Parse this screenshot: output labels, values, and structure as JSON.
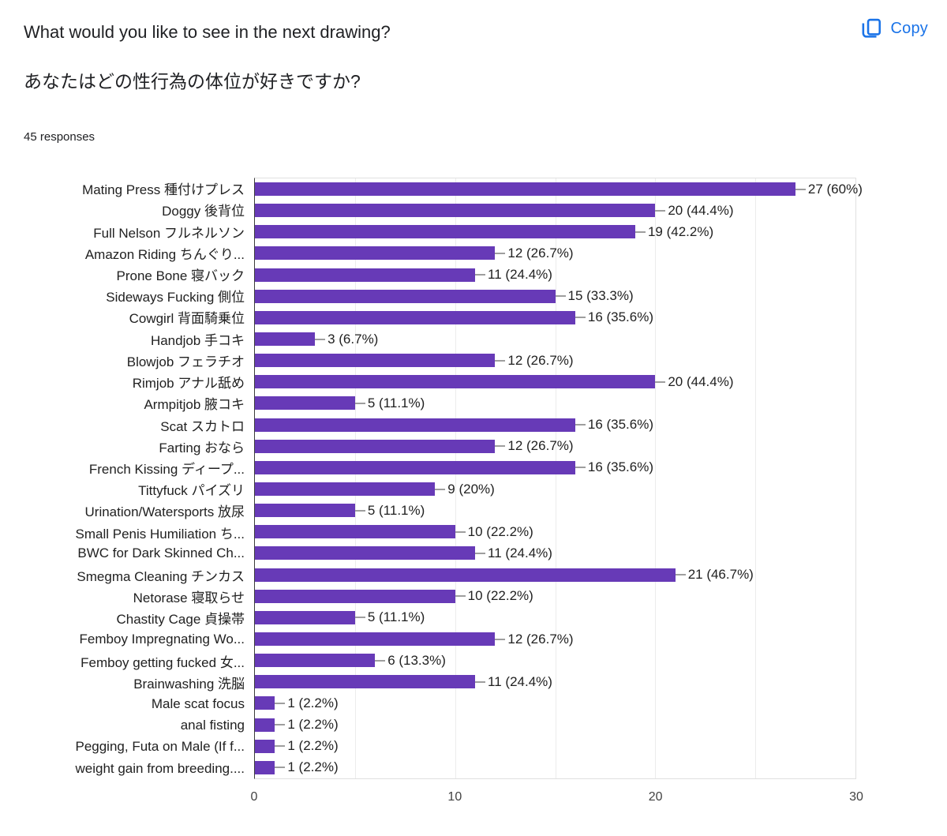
{
  "header": {
    "title": "What would you like to see in the next drawing?",
    "subtitle_ja": "あなたはどの性行為の体位が好きですか?",
    "responses": "45 responses",
    "copy_label": "Copy",
    "copy_color": "#1a73e8"
  },
  "chart_data": {
    "type": "bar",
    "orientation": "horizontal",
    "title": "",
    "xlabel": "",
    "ylabel": "",
    "xlim": [
      0,
      30
    ],
    "xticks": [
      0,
      10,
      20,
      30
    ],
    "gridline_step": 5,
    "grid": true,
    "bar_color": "#673ab7",
    "categories": [
      "Mating Press 種付けプレス",
      "Doggy 後背位",
      "Full Nelson フルネルソン",
      "Amazon Riding ちんぐり...",
      "Prone Bone 寝バック",
      "Sideways Fucking 側位",
      "Cowgirl 背面騎乗位",
      "Handjob 手コキ",
      "Blowjob フェラチオ",
      "Rimjob アナル舐め",
      "Armpitjob 腋コキ",
      "Scat スカトロ",
      "Farting おなら",
      "French Kissing ディープ...",
      "Tittyfuck パイズリ",
      "Urination/Watersports 放尿",
      "Small Penis Humiliation ち...",
      "BWC for Dark Skinned Ch...",
      "Smegma Cleaning チンカス",
      "Netorase 寝取らせ",
      "Chastity Cage 貞操帯",
      "Femboy Impregnating Wo...",
      "Femboy getting fucked 女...",
      "Brainwashing 洗脳",
      "Male scat focus",
      "anal fisting",
      "Pegging, Futa on Male (If f...",
      "weight gain from breeding...."
    ],
    "values": [
      27,
      20,
      19,
      12,
      11,
      15,
      16,
      3,
      12,
      20,
      5,
      16,
      12,
      16,
      9,
      5,
      10,
      11,
      21,
      10,
      5,
      12,
      6,
      11,
      1,
      1,
      1,
      1
    ],
    "value_labels": [
      "27 (60%)",
      "20 (44.4%)",
      "19 (42.2%)",
      "12 (26.7%)",
      "11 (24.4%)",
      "15 (33.3%)",
      "16 (35.6%)",
      "3 (6.7%)",
      "12 (26.7%)",
      "20 (44.4%)",
      "5 (11.1%)",
      "16 (35.6%)",
      "12 (26.7%)",
      "16 (35.6%)",
      "9 (20%)",
      "5 (11.1%)",
      "10 (22.2%)",
      "11 (24.4%)",
      "21 (46.7%)",
      "10 (22.2%)",
      "5 (11.1%)",
      "12 (26.7%)",
      "6 (13.3%)",
      "11 (24.4%)",
      "1 (2.2%)",
      "1 (2.2%)",
      "1 (2.2%)",
      "1 (2.2%)"
    ]
  }
}
